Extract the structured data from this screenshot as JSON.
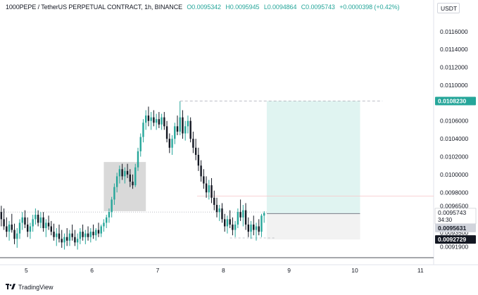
{
  "header": {
    "symbol": "1000PEPE / TetherUS PERPETUAL CONTRACT, 1h, BINANCE",
    "open": "O0.0095342",
    "high": "H0.0095945",
    "low": "L0.0094864",
    "close": "C0.0095743",
    "change": "+0.0000398 (+0.42%)"
  },
  "currency_label": "USDT",
  "footer": {
    "brand": "TradingView"
  },
  "colors": {
    "up": "#26a69a",
    "down": "#131722",
    "profit_zone": "#e0f4f1",
    "loss_zone": "#f2f2f2",
    "demand_box": "#d9d9d9",
    "target_label": "#26a69a",
    "entry_line": "#089981",
    "stop_line": "#f23645"
  },
  "chart_data": {
    "type": "candlestick",
    "price_axis_ticks": [
      "0.0116000",
      "0.0114000",
      "0.0112000",
      "0.0110000",
      "0.0106000",
      "0.0104000",
      "0.0102000",
      "0.0100000",
      "0.0098000",
      "0.0096500",
      "0.0093500",
      "0.0091900"
    ],
    "time_axis_ticks": [
      "5",
      "6",
      "7",
      "8",
      "9",
      "10",
      "11"
    ],
    "price_labels": {
      "target": "0.0108230",
      "current": "0.0095743",
      "countdown": "34:30",
      "entry": "0.0095631",
      "stop": "0.0092729"
    },
    "ylim": [
      0.009085,
      0.01178
    ],
    "xlim": [
      4.6,
      11.2
    ],
    "candles": [
      {
        "t": 4.62,
        "o": 0.00958,
        "h": 0.00965,
        "l": 0.00942,
        "c": 0.0095
      },
      {
        "t": 4.66,
        "o": 0.0095,
        "h": 0.00962,
        "l": 0.00938,
        "c": 0.00942
      },
      {
        "t": 4.7,
        "o": 0.00942,
        "h": 0.00952,
        "l": 0.0093,
        "c": 0.00936
      },
      {
        "t": 4.74,
        "o": 0.00936,
        "h": 0.00948,
        "l": 0.00926,
        "c": 0.00944
      },
      {
        "t": 4.78,
        "o": 0.00944,
        "h": 0.00956,
        "l": 0.00935,
        "c": 0.00938
      },
      {
        "t": 4.82,
        "o": 0.00938,
        "h": 0.00945,
        "l": 0.00922,
        "c": 0.00928
      },
      {
        "t": 4.86,
        "o": 0.00928,
        "h": 0.0094,
        "l": 0.00918,
        "c": 0.00934
      },
      {
        "t": 4.9,
        "o": 0.00934,
        "h": 0.0095,
        "l": 0.00928,
        "c": 0.00946
      },
      {
        "t": 4.94,
        "o": 0.00946,
        "h": 0.00958,
        "l": 0.00938,
        "c": 0.00952
      },
      {
        "t": 4.98,
        "o": 0.00952,
        "h": 0.0096,
        "l": 0.0094,
        "c": 0.00944
      },
      {
        "t": 5.02,
        "o": 0.00944,
        "h": 0.00952,
        "l": 0.0093,
        "c": 0.00936
      },
      {
        "t": 5.06,
        "o": 0.00936,
        "h": 0.00946,
        "l": 0.00928,
        "c": 0.00942
      },
      {
        "t": 5.1,
        "o": 0.00942,
        "h": 0.00955,
        "l": 0.00936,
        "c": 0.0095
      },
      {
        "t": 5.14,
        "o": 0.0095,
        "h": 0.00962,
        "l": 0.00944,
        "c": 0.00955
      },
      {
        "t": 5.18,
        "o": 0.00955,
        "h": 0.0096,
        "l": 0.00942,
        "c": 0.00946
      },
      {
        "t": 5.22,
        "o": 0.00946,
        "h": 0.00958,
        "l": 0.0094,
        "c": 0.00952
      },
      {
        "t": 5.26,
        "o": 0.00952,
        "h": 0.00958,
        "l": 0.00936,
        "c": 0.0094
      },
      {
        "t": 5.3,
        "o": 0.0094,
        "h": 0.0095,
        "l": 0.0093,
        "c": 0.00946
      },
      {
        "t": 5.34,
        "o": 0.00946,
        "h": 0.00954,
        "l": 0.00938,
        "c": 0.00942
      },
      {
        "t": 5.38,
        "o": 0.00942,
        "h": 0.00948,
        "l": 0.00932,
        "c": 0.00936
      },
      {
        "t": 5.42,
        "o": 0.00936,
        "h": 0.00945,
        "l": 0.00926,
        "c": 0.0093
      },
      {
        "t": 5.46,
        "o": 0.0093,
        "h": 0.0094,
        "l": 0.0092,
        "c": 0.00934
      },
      {
        "t": 5.5,
        "o": 0.00934,
        "h": 0.00944,
        "l": 0.00924,
        "c": 0.00928
      },
      {
        "t": 5.54,
        "o": 0.00928,
        "h": 0.00938,
        "l": 0.00918,
        "c": 0.00924
      },
      {
        "t": 5.58,
        "o": 0.00924,
        "h": 0.00934,
        "l": 0.00916,
        "c": 0.0093
      },
      {
        "t": 5.62,
        "o": 0.0093,
        "h": 0.0094,
        "l": 0.0092,
        "c": 0.00926
      },
      {
        "t": 5.66,
        "o": 0.00926,
        "h": 0.00938,
        "l": 0.0092,
        "c": 0.00934
      },
      {
        "t": 5.7,
        "o": 0.00934,
        "h": 0.00944,
        "l": 0.00926,
        "c": 0.0093
      },
      {
        "t": 5.74,
        "o": 0.0093,
        "h": 0.00938,
        "l": 0.0092,
        "c": 0.00924
      },
      {
        "t": 5.78,
        "o": 0.00924,
        "h": 0.00934,
        "l": 0.00916,
        "c": 0.00928
      },
      {
        "t": 5.82,
        "o": 0.00928,
        "h": 0.0094,
        "l": 0.00922,
        "c": 0.00936
      },
      {
        "t": 5.86,
        "o": 0.00936,
        "h": 0.00944,
        "l": 0.00926,
        "c": 0.0093
      },
      {
        "t": 5.9,
        "o": 0.0093,
        "h": 0.00938,
        "l": 0.00922,
        "c": 0.00934
      },
      {
        "t": 5.94,
        "o": 0.00934,
        "h": 0.00942,
        "l": 0.00926,
        "c": 0.0093
      },
      {
        "t": 5.98,
        "o": 0.0093,
        "h": 0.0094,
        "l": 0.00924,
        "c": 0.00936
      },
      {
        "t": 6.02,
        "o": 0.00936,
        "h": 0.00944,
        "l": 0.00928,
        "c": 0.00932
      },
      {
        "t": 6.06,
        "o": 0.00932,
        "h": 0.0094,
        "l": 0.00926,
        "c": 0.00938
      },
      {
        "t": 6.1,
        "o": 0.00938,
        "h": 0.00946,
        "l": 0.0093,
        "c": 0.00934
      },
      {
        "t": 6.14,
        "o": 0.00934,
        "h": 0.00944,
        "l": 0.0093,
        "c": 0.00942
      },
      {
        "t": 6.18,
        "o": 0.00942,
        "h": 0.0095,
        "l": 0.00936,
        "c": 0.00946
      },
      {
        "t": 6.22,
        "o": 0.00946,
        "h": 0.00955,
        "l": 0.0094,
        "c": 0.00952
      },
      {
        "t": 6.26,
        "o": 0.00952,
        "h": 0.00962,
        "l": 0.00946,
        "c": 0.00958
      },
      {
        "t": 6.3,
        "o": 0.00958,
        "h": 0.00975,
        "l": 0.00952,
        "c": 0.00972
      },
      {
        "t": 6.34,
        "o": 0.00972,
        "h": 0.0099,
        "l": 0.00966,
        "c": 0.00986
      },
      {
        "t": 6.38,
        "o": 0.00986,
        "h": 0.01002,
        "l": 0.0098,
        "c": 0.00998
      },
      {
        "t": 6.42,
        "o": 0.00998,
        "h": 0.0101,
        "l": 0.0099,
        "c": 0.01006
      },
      {
        "t": 6.46,
        "o": 0.01006,
        "h": 0.01012,
        "l": 0.00994,
        "c": 0.00998
      },
      {
        "t": 6.5,
        "o": 0.00998,
        "h": 0.01008,
        "l": 0.0099,
        "c": 0.01004
      },
      {
        "t": 6.54,
        "o": 0.01004,
        "h": 0.01012,
        "l": 0.00996,
        "c": 0.01
      },
      {
        "t": 6.58,
        "o": 0.01,
        "h": 0.01006,
        "l": 0.00986,
        "c": 0.00992
      },
      {
        "t": 6.62,
        "o": 0.00992,
        "h": 0.01,
        "l": 0.00984,
        "c": 0.00988
      },
      {
        "t": 6.66,
        "o": 0.00988,
        "h": 0.01012,
        "l": 0.00986,
        "c": 0.01008
      },
      {
        "t": 6.7,
        "o": 0.01008,
        "h": 0.0103,
        "l": 0.01004,
        "c": 0.01026
      },
      {
        "t": 6.74,
        "o": 0.01026,
        "h": 0.01046,
        "l": 0.0102,
        "c": 0.01042
      },
      {
        "t": 6.78,
        "o": 0.01042,
        "h": 0.01062,
        "l": 0.01036,
        "c": 0.01058
      },
      {
        "t": 6.82,
        "o": 0.01058,
        "h": 0.01072,
        "l": 0.0105,
        "c": 0.01066
      },
      {
        "t": 6.86,
        "o": 0.01066,
        "h": 0.01076,
        "l": 0.01054,
        "c": 0.0106
      },
      {
        "t": 6.9,
        "o": 0.0106,
        "h": 0.0107,
        "l": 0.0105,
        "c": 0.01064
      },
      {
        "t": 6.94,
        "o": 0.01064,
        "h": 0.01072,
        "l": 0.01054,
        "c": 0.01058
      },
      {
        "t": 6.98,
        "o": 0.01058,
        "h": 0.01068,
        "l": 0.0105,
        "c": 0.01062
      },
      {
        "t": 7.02,
        "o": 0.01062,
        "h": 0.0107,
        "l": 0.01052,
        "c": 0.01056
      },
      {
        "t": 7.06,
        "o": 0.01056,
        "h": 0.01068,
        "l": 0.0105,
        "c": 0.01064
      },
      {
        "t": 7.1,
        "o": 0.01064,
        "h": 0.0107,
        "l": 0.0105,
        "c": 0.01054
      },
      {
        "t": 7.14,
        "o": 0.01054,
        "h": 0.0106,
        "l": 0.01036,
        "c": 0.0104
      },
      {
        "t": 7.18,
        "o": 0.0104,
        "h": 0.01046,
        "l": 0.01024,
        "c": 0.0103
      },
      {
        "t": 7.22,
        "o": 0.0103,
        "h": 0.01044,
        "l": 0.01022,
        "c": 0.0104
      },
      {
        "t": 7.26,
        "o": 0.0104,
        "h": 0.01058,
        "l": 0.01034,
        "c": 0.01054
      },
      {
        "t": 7.3,
        "o": 0.01054,
        "h": 0.01066,
        "l": 0.01044,
        "c": 0.01048
      },
      {
        "t": 7.34,
        "o": 0.01048,
        "h": 0.01082,
        "l": 0.01044,
        "c": 0.01064
      },
      {
        "t": 7.38,
        "o": 0.01064,
        "h": 0.01072,
        "l": 0.0104,
        "c": 0.01046
      },
      {
        "t": 7.42,
        "o": 0.01046,
        "h": 0.0106,
        "l": 0.01038,
        "c": 0.01054
      },
      {
        "t": 7.46,
        "o": 0.01054,
        "h": 0.01066,
        "l": 0.01046,
        "c": 0.0106
      },
      {
        "t": 7.5,
        "o": 0.0106,
        "h": 0.01064,
        "l": 0.01036,
        "c": 0.0104
      },
      {
        "t": 7.54,
        "o": 0.0104,
        "h": 0.01048,
        "l": 0.01024,
        "c": 0.0103
      },
      {
        "t": 7.58,
        "o": 0.0103,
        "h": 0.0104,
        "l": 0.01016,
        "c": 0.01022
      },
      {
        "t": 7.62,
        "o": 0.01022,
        "h": 0.0103,
        "l": 0.01004,
        "c": 0.0101
      },
      {
        "t": 7.66,
        "o": 0.0101,
        "h": 0.01016,
        "l": 0.00992,
        "c": 0.00998
      },
      {
        "t": 7.7,
        "o": 0.00998,
        "h": 0.01006,
        "l": 0.00984,
        "c": 0.0099
      },
      {
        "t": 7.74,
        "o": 0.0099,
        "h": 0.00998,
        "l": 0.00974,
        "c": 0.0098
      },
      {
        "t": 7.78,
        "o": 0.0098,
        "h": 0.00994,
        "l": 0.00972,
        "c": 0.00988
      },
      {
        "t": 7.82,
        "o": 0.00988,
        "h": 0.00996,
        "l": 0.00968,
        "c": 0.00974
      },
      {
        "t": 7.86,
        "o": 0.00974,
        "h": 0.00982,
        "l": 0.0096,
        "c": 0.00966
      },
      {
        "t": 7.9,
        "o": 0.00966,
        "h": 0.00974,
        "l": 0.00952,
        "c": 0.00958
      },
      {
        "t": 7.94,
        "o": 0.00958,
        "h": 0.00966,
        "l": 0.00948,
        "c": 0.00962
      },
      {
        "t": 7.98,
        "o": 0.00962,
        "h": 0.00968,
        "l": 0.00946,
        "c": 0.0095
      },
      {
        "t": 8.02,
        "o": 0.0095,
        "h": 0.00956,
        "l": 0.00936,
        "c": 0.00942
      },
      {
        "t": 8.06,
        "o": 0.00942,
        "h": 0.00954,
        "l": 0.00934,
        "c": 0.0095
      },
      {
        "t": 8.1,
        "o": 0.0095,
        "h": 0.0096,
        "l": 0.0094,
        "c": 0.00944
      },
      {
        "t": 8.14,
        "o": 0.00944,
        "h": 0.00952,
        "l": 0.00932,
        "c": 0.00938
      },
      {
        "t": 8.18,
        "o": 0.00938,
        "h": 0.00948,
        "l": 0.0093,
        "c": 0.00944
      },
      {
        "t": 8.22,
        "o": 0.00944,
        "h": 0.00962,
        "l": 0.0094,
        "c": 0.00958
      },
      {
        "t": 8.26,
        "o": 0.00958,
        "h": 0.00972,
        "l": 0.00948,
        "c": 0.00952
      },
      {
        "t": 8.3,
        "o": 0.00952,
        "h": 0.00966,
        "l": 0.00942,
        "c": 0.0096
      },
      {
        "t": 8.34,
        "o": 0.0096,
        "h": 0.00968,
        "l": 0.00938,
        "c": 0.00944
      },
      {
        "t": 8.38,
        "o": 0.00944,
        "h": 0.00952,
        "l": 0.0093,
        "c": 0.00936
      },
      {
        "t": 8.42,
        "o": 0.00936,
        "h": 0.00948,
        "l": 0.00928,
        "c": 0.00944
      },
      {
        "t": 8.46,
        "o": 0.00944,
        "h": 0.00954,
        "l": 0.00932,
        "c": 0.00938
      },
      {
        "t": 8.5,
        "o": 0.00938,
        "h": 0.00946,
        "l": 0.00926,
        "c": 0.00942
      },
      {
        "t": 8.54,
        "o": 0.00942,
        "h": 0.0095,
        "l": 0.00932,
        "c": 0.00936
      },
      {
        "t": 8.58,
        "o": 0.00936,
        "h": 0.00956,
        "l": 0.0093,
        "c": 0.00954
      },
      {
        "t": 8.62,
        "o": 0.00954,
        "h": 0.00959,
        "l": 0.00946,
        "c": 0.00957
      }
    ],
    "annotations": {
      "demand_zone": {
        "t_start": 6.18,
        "t_end": 6.82,
        "price_low": 0.00959,
        "price_high": 0.01014
      },
      "position": {
        "t_start": 8.66,
        "t_end": 10.08,
        "entry": 0.0095631,
        "target": 0.010823,
        "stop": 0.0092729
      },
      "target_dashed_line": {
        "t_start": 7.34,
        "t_end": 10.42,
        "price": 0.010823
      },
      "resistance_line": {
        "t_start": 7.6,
        "t_end": 11.2,
        "price": 0.00976
      },
      "support_dotted_line": {
        "t_start": 4.6,
        "t_end": 8.66,
        "price": 0.00958
      },
      "low_dashed_line": {
        "t_start": 8.1,
        "t_end": 8.8,
        "price": 0.00929
      }
    }
  }
}
